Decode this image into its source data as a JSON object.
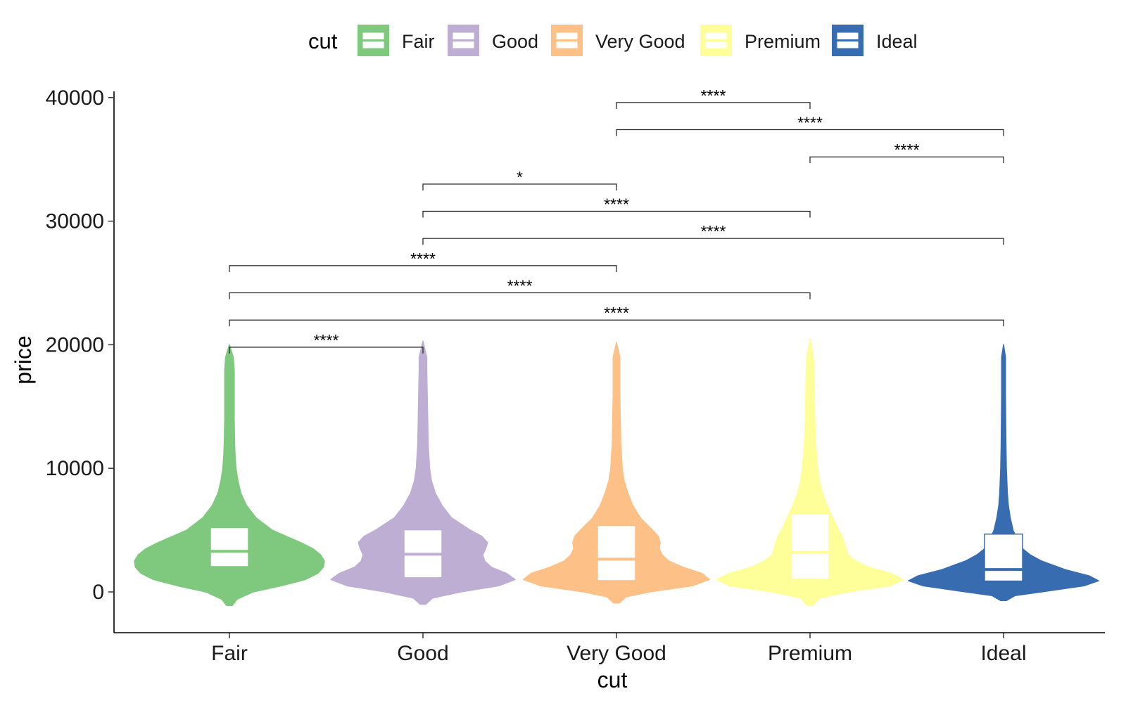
{
  "chart_data": {
    "type": "violin",
    "title": "",
    "xlabel": "cut",
    "ylabel": "price",
    "categories": [
      "Fair",
      "Good",
      "Very Good",
      "Premium",
      "Ideal"
    ],
    "ylim": [
      -3300,
      40500
    ],
    "yticks": [
      0,
      10000,
      20000,
      30000,
      40000
    ],
    "y_tick_labels": [
      "0",
      "10000",
      "20000",
      "30000",
      "40000"
    ],
    "grid": false,
    "legend": {
      "title": "cut",
      "position": "top",
      "entries": [
        "Fair",
        "Good",
        "Very Good",
        "Premium",
        "Ideal"
      ]
    },
    "colors": [
      "#7fc97f",
      "#beaed4",
      "#fdc086",
      "#ffff99",
      "#386cb0"
    ],
    "series": [
      {
        "name": "Fair",
        "min": 337,
        "q1": 2050,
        "median": 3282,
        "q3": 5206,
        "max": 18574,
        "density": [
          [
            -1100,
            0.03
          ],
          [
            -600,
            0.08
          ],
          [
            0,
            0.25
          ],
          [
            500,
            0.55
          ],
          [
            1000,
            0.8
          ],
          [
            1500,
            0.93
          ],
          [
            2000,
            0.99
          ],
          [
            2500,
            1.0
          ],
          [
            3000,
            0.96
          ],
          [
            3500,
            0.88
          ],
          [
            4000,
            0.75
          ],
          [
            4500,
            0.6
          ],
          [
            5000,
            0.45
          ],
          [
            6000,
            0.28
          ],
          [
            7000,
            0.18
          ],
          [
            8000,
            0.12
          ],
          [
            9000,
            0.09
          ],
          [
            10000,
            0.07
          ],
          [
            11000,
            0.06
          ],
          [
            12000,
            0.055
          ],
          [
            14000,
            0.05
          ],
          [
            16000,
            0.05
          ],
          [
            18000,
            0.05
          ],
          [
            19000,
            0.04
          ],
          [
            20000,
            0.0
          ]
        ]
      },
      {
        "name": "Good",
        "min": 327,
        "q1": 1145,
        "median": 3050,
        "q3": 5028,
        "max": 18788,
        "density": [
          [
            -1000,
            0.03
          ],
          [
            -500,
            0.1
          ],
          [
            0,
            0.4
          ],
          [
            500,
            0.8
          ],
          [
            1000,
            0.97
          ],
          [
            1500,
            0.88
          ],
          [
            2000,
            0.72
          ],
          [
            2500,
            0.65
          ],
          [
            3000,
            0.63
          ],
          [
            3500,
            0.66
          ],
          [
            4000,
            0.68
          ],
          [
            4500,
            0.62
          ],
          [
            5000,
            0.5
          ],
          [
            6000,
            0.3
          ],
          [
            7000,
            0.2
          ],
          [
            8000,
            0.13
          ],
          [
            9000,
            0.09
          ],
          [
            10000,
            0.07
          ],
          [
            12000,
            0.055
          ],
          [
            14000,
            0.05
          ],
          [
            16000,
            0.045
          ],
          [
            18000,
            0.04
          ],
          [
            19000,
            0.04
          ],
          [
            20300,
            0.0
          ]
        ]
      },
      {
        "name": "Very Good",
        "min": 336,
        "q1": 912,
        "median": 2648,
        "q3": 5373,
        "max": 18818,
        "density": [
          [
            -900,
            0.03
          ],
          [
            -400,
            0.1
          ],
          [
            0,
            0.35
          ],
          [
            500,
            0.8
          ],
          [
            1000,
            0.98
          ],
          [
            1500,
            0.9
          ],
          [
            2000,
            0.7
          ],
          [
            2500,
            0.55
          ],
          [
            3000,
            0.48
          ],
          [
            3500,
            0.45
          ],
          [
            4000,
            0.46
          ],
          [
            4500,
            0.44
          ],
          [
            5000,
            0.38
          ],
          [
            6000,
            0.25
          ],
          [
            7000,
            0.17
          ],
          [
            8000,
            0.12
          ],
          [
            9000,
            0.08
          ],
          [
            10000,
            0.06
          ],
          [
            12000,
            0.045
          ],
          [
            14000,
            0.04
          ],
          [
            16000,
            0.035
          ],
          [
            18000,
            0.035
          ],
          [
            19000,
            0.035
          ],
          [
            20200,
            0.0
          ]
        ]
      },
      {
        "name": "Premium",
        "min": 326,
        "q1": 1046,
        "median": 3185,
        "q3": 6296,
        "max": 18823,
        "density": [
          [
            -1100,
            0.03
          ],
          [
            -500,
            0.1
          ],
          [
            0,
            0.4
          ],
          [
            500,
            0.85
          ],
          [
            1000,
            0.98
          ],
          [
            1500,
            0.85
          ],
          [
            2000,
            0.62
          ],
          [
            2500,
            0.48
          ],
          [
            3000,
            0.4
          ],
          [
            3500,
            0.38
          ],
          [
            4000,
            0.36
          ],
          [
            4500,
            0.34
          ],
          [
            5000,
            0.3
          ],
          [
            6000,
            0.24
          ],
          [
            7000,
            0.18
          ],
          [
            8000,
            0.13
          ],
          [
            9000,
            0.1
          ],
          [
            10000,
            0.08
          ],
          [
            12000,
            0.06
          ],
          [
            14000,
            0.05
          ],
          [
            16000,
            0.045
          ],
          [
            18000,
            0.04
          ],
          [
            19000,
            0.035
          ],
          [
            20500,
            0.0
          ]
        ]
      },
      {
        "name": "Ideal",
        "min": 326,
        "q1": 878,
        "median": 1810,
        "q3": 4678,
        "max": 18806,
        "density": [
          [
            -700,
            0.03
          ],
          [
            -300,
            0.12
          ],
          [
            0,
            0.4
          ],
          [
            500,
            0.85
          ],
          [
            900,
            1.0
          ],
          [
            1300,
            0.9
          ],
          [
            1800,
            0.65
          ],
          [
            2500,
            0.4
          ],
          [
            3000,
            0.28
          ],
          [
            3500,
            0.2
          ],
          [
            4000,
            0.16
          ],
          [
            4500,
            0.13
          ],
          [
            5000,
            0.1
          ],
          [
            6000,
            0.07
          ],
          [
            7000,
            0.05
          ],
          [
            8000,
            0.04
          ],
          [
            9000,
            0.035
          ],
          [
            10000,
            0.03
          ],
          [
            12000,
            0.025
          ],
          [
            14000,
            0.022
          ],
          [
            16000,
            0.02
          ],
          [
            18000,
            0.02
          ],
          [
            19000,
            0.02
          ],
          [
            20000,
            0.0
          ]
        ]
      }
    ],
    "comparisons": [
      {
        "group1": "Fair",
        "group2": "Good",
        "y": 19800,
        "label": "****"
      },
      {
        "group1": "Fair",
        "group2": "Ideal",
        "y": 22000,
        "label": "****"
      },
      {
        "group1": "Fair",
        "group2": "Premium",
        "y": 24200,
        "label": "****"
      },
      {
        "group1": "Fair",
        "group2": "Very Good",
        "y": 26400,
        "label": "****"
      },
      {
        "group1": "Good",
        "group2": "Ideal",
        "y": 28600,
        "label": "****"
      },
      {
        "group1": "Good",
        "group2": "Premium",
        "y": 30800,
        "label": "****"
      },
      {
        "group1": "Good",
        "group2": "Very Good",
        "y": 33000,
        "label": "*"
      },
      {
        "group1": "Premium",
        "group2": "Ideal",
        "y": 35200,
        "label": "****"
      },
      {
        "group1": "Very Good",
        "group2": "Ideal",
        "y": 37400,
        "label": "****"
      },
      {
        "group1": "Very Good",
        "group2": "Premium",
        "y": 39600,
        "label": "****"
      }
    ]
  }
}
